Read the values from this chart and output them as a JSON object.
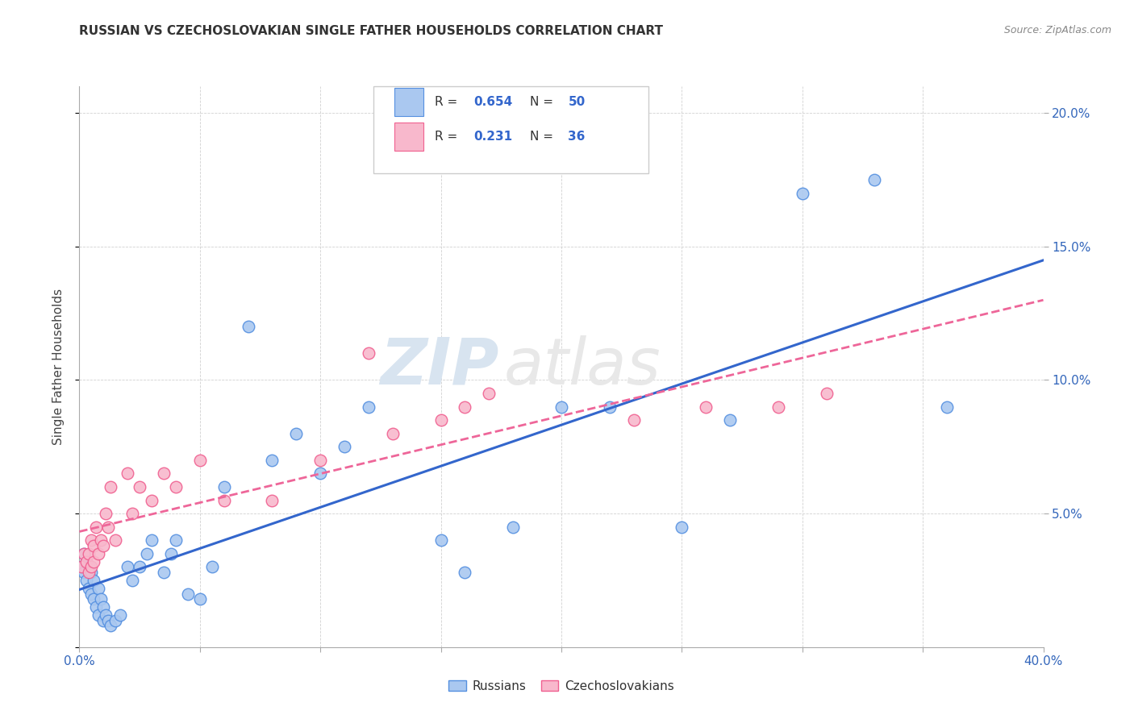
{
  "title": "RUSSIAN VS CZECHOSLOVAKIAN SINGLE FATHER HOUSEHOLDS CORRELATION CHART",
  "source": "Source: ZipAtlas.com",
  "ylabel": "Single Father Households",
  "watermark_zip": "ZIP",
  "watermark_atlas": "atlas",
  "xlim": [
    0.0,
    0.4
  ],
  "ylim": [
    0.0,
    0.21
  ],
  "legend_r_russian": "0.654",
  "legend_n_russian": "50",
  "legend_r_czech": "0.231",
  "legend_n_czech": "36",
  "russian_color": "#aac8f0",
  "czech_color": "#f8b8cc",
  "russian_edge": "#5590e0",
  "czech_edge": "#f06090",
  "russian_line_color": "#3366cc",
  "czech_line_color": "#ee6699",
  "russian_x": [
    0.001,
    0.002,
    0.002,
    0.003,
    0.003,
    0.004,
    0.004,
    0.005,
    0.005,
    0.006,
    0.006,
    0.007,
    0.008,
    0.008,
    0.009,
    0.01,
    0.01,
    0.011,
    0.012,
    0.013,
    0.015,
    0.017,
    0.02,
    0.022,
    0.025,
    0.028,
    0.03,
    0.035,
    0.038,
    0.04,
    0.045,
    0.05,
    0.055,
    0.06,
    0.07,
    0.08,
    0.09,
    0.1,
    0.11,
    0.12,
    0.15,
    0.16,
    0.18,
    0.2,
    0.22,
    0.25,
    0.27,
    0.3,
    0.33,
    0.36
  ],
  "russian_y": [
    0.03,
    0.035,
    0.028,
    0.032,
    0.025,
    0.03,
    0.022,
    0.028,
    0.02,
    0.025,
    0.018,
    0.015,
    0.022,
    0.012,
    0.018,
    0.015,
    0.01,
    0.012,
    0.01,
    0.008,
    0.01,
    0.012,
    0.03,
    0.025,
    0.03,
    0.035,
    0.04,
    0.028,
    0.035,
    0.04,
    0.02,
    0.018,
    0.03,
    0.06,
    0.12,
    0.07,
    0.08,
    0.065,
    0.075,
    0.09,
    0.04,
    0.028,
    0.045,
    0.09,
    0.09,
    0.045,
    0.085,
    0.17,
    0.175,
    0.09
  ],
  "czech_x": [
    0.001,
    0.002,
    0.003,
    0.004,
    0.004,
    0.005,
    0.005,
    0.006,
    0.006,
    0.007,
    0.008,
    0.009,
    0.01,
    0.011,
    0.012,
    0.013,
    0.015,
    0.02,
    0.022,
    0.025,
    0.03,
    0.035,
    0.04,
    0.05,
    0.06,
    0.08,
    0.1,
    0.12,
    0.13,
    0.15,
    0.16,
    0.17,
    0.23,
    0.26,
    0.29,
    0.31
  ],
  "czech_y": [
    0.03,
    0.035,
    0.032,
    0.028,
    0.035,
    0.03,
    0.04,
    0.038,
    0.032,
    0.045,
    0.035,
    0.04,
    0.038,
    0.05,
    0.045,
    0.06,
    0.04,
    0.065,
    0.05,
    0.06,
    0.055,
    0.065,
    0.06,
    0.07,
    0.055,
    0.055,
    0.07,
    0.11,
    0.08,
    0.085,
    0.09,
    0.095,
    0.085,
    0.09,
    0.09,
    0.095
  ]
}
